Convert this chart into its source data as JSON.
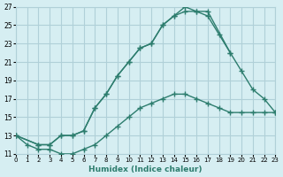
{
  "xlabel": "Humidex (Indice chaleur)",
  "xlim": [
    0,
    23
  ],
  "ylim": [
    11,
    27
  ],
  "yticks": [
    11,
    13,
    15,
    17,
    19,
    21,
    23,
    25,
    27
  ],
  "xticks": [
    0,
    1,
    2,
    3,
    4,
    5,
    6,
    7,
    8,
    9,
    10,
    11,
    12,
    13,
    14,
    15,
    16,
    17,
    18,
    19,
    20,
    21,
    22,
    23
  ],
  "bg_color": "#d6eef2",
  "grid_color": "#b0d0d8",
  "line_color": "#2d7d6e",
  "lines": [
    {
      "x": [
        0,
        1,
        2,
        3,
        4,
        5,
        6,
        7,
        8,
        9,
        10,
        11,
        12,
        13,
        14,
        15,
        16,
        17,
        18,
        19,
        20,
        21,
        22,
        23
      ],
      "y": [
        13,
        12,
        11.5,
        11.5,
        11,
        11,
        11.5,
        12,
        13,
        14,
        15,
        16,
        16.5,
        17,
        17.5,
        17.5,
        17,
        16.5,
        16,
        15.5,
        15.5,
        15.5,
        15.5,
        15.5
      ]
    },
    {
      "x": [
        0,
        2,
        3,
        4,
        5,
        6,
        7,
        8,
        9,
        10,
        11,
        12,
        13,
        14,
        15,
        16,
        17,
        18,
        19,
        20,
        21,
        22,
        23
      ],
      "y": [
        13,
        12,
        12,
        13,
        13,
        13.5,
        16,
        17.5,
        19.5,
        21,
        22.5,
        23,
        25,
        26,
        26.5,
        26.5,
        26,
        24,
        22,
        null,
        null,
        null,
        null
      ]
    },
    {
      "x": [
        0,
        2,
        3,
        4,
        5,
        6,
        7,
        8,
        9,
        10,
        11,
        12,
        13,
        14,
        15,
        16,
        17,
        19,
        20,
        21,
        22,
        23
      ],
      "y": [
        13,
        12,
        12,
        13,
        13,
        13.5,
        16,
        17.5,
        19.5,
        21,
        22.5,
        23,
        25,
        26,
        27,
        26.5,
        26.5,
        22,
        20,
        18,
        17,
        15.5
      ]
    }
  ]
}
